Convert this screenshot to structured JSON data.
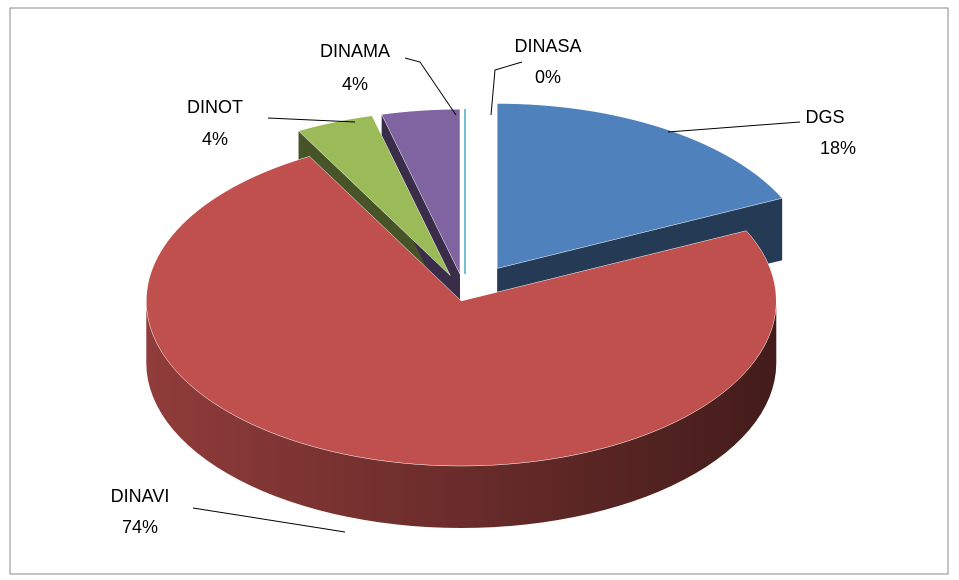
{
  "chart_data": {
    "type": "pie",
    "categories": [
      "DGS",
      "DINAVI",
      "DINOT",
      "DINAMA",
      "DINASA"
    ],
    "values": [
      18,
      74,
      4,
      4,
      0
    ],
    "value_labels": [
      "18%",
      "74%",
      "4%",
      "4%",
      "0%"
    ],
    "colors": [
      "#4f81bd",
      "#c0504d",
      "#9bbb59",
      "#8064a2",
      "#4bacc6"
    ],
    "three_d": true
  }
}
